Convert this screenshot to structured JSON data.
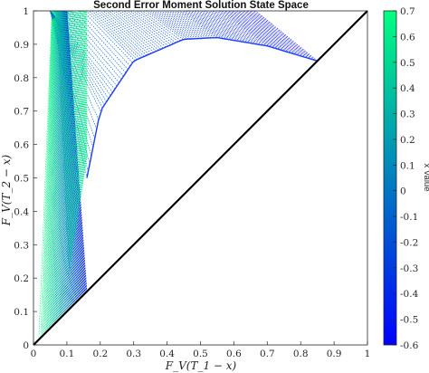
{
  "chart_data": {
    "type": "line",
    "title": "Second Error Moment Solution State Space",
    "xlabel": "F_V(T_1 − x)",
    "ylabel": "F_V(T_2 − x)",
    "xlim": [
      0,
      1
    ],
    "ylim": [
      0,
      1
    ],
    "x_ticks": [
      "0",
      "0.1",
      "0.2",
      "0.3",
      "0.4",
      "0.5",
      "0.6",
      "0.7",
      "0.8",
      "0.9",
      "1"
    ],
    "y_ticks": [
      "0",
      "0.1",
      "0.2",
      "0.3",
      "0.4",
      "0.5",
      "0.6",
      "0.7",
      "0.8",
      "0.9",
      "1"
    ],
    "grid": false,
    "series": [
      {
        "description": "diagonal y = x (black)",
        "x": [
          0,
          1
        ],
        "y": [
          0,
          1
        ],
        "color": "#000000"
      },
      {
        "description": "solution curves fanning from the diagonal to y = 1, colored by x value"
      }
    ],
    "boundary_points": [
      {
        "x": 0.16,
        "y": 0.16
      },
      {
        "x": 0.16,
        "y": 0.5
      },
      {
        "x": 0.2,
        "y": 0.7
      },
      {
        "x": 0.3,
        "y": 0.85
      },
      {
        "x": 0.45,
        "y": 0.915
      },
      {
        "x": 0.55,
        "y": 0.92
      },
      {
        "x": 0.7,
        "y": 0.895
      },
      {
        "x": 0.85,
        "y": 0.85
      }
    ],
    "colorbar": {
      "label": "x Value",
      "range": [
        -0.6,
        0.7
      ],
      "ticks": [
        "0.7",
        "0.6",
        "0.5",
        "0.4",
        "0.3",
        "0.2",
        "0.1",
        "0",
        "-0.1",
        "-0.2",
        "-0.3",
        "-0.4",
        "-0.5",
        "-0.6"
      ],
      "colormap": [
        "#0000ff",
        "#00ff80"
      ]
    }
  }
}
